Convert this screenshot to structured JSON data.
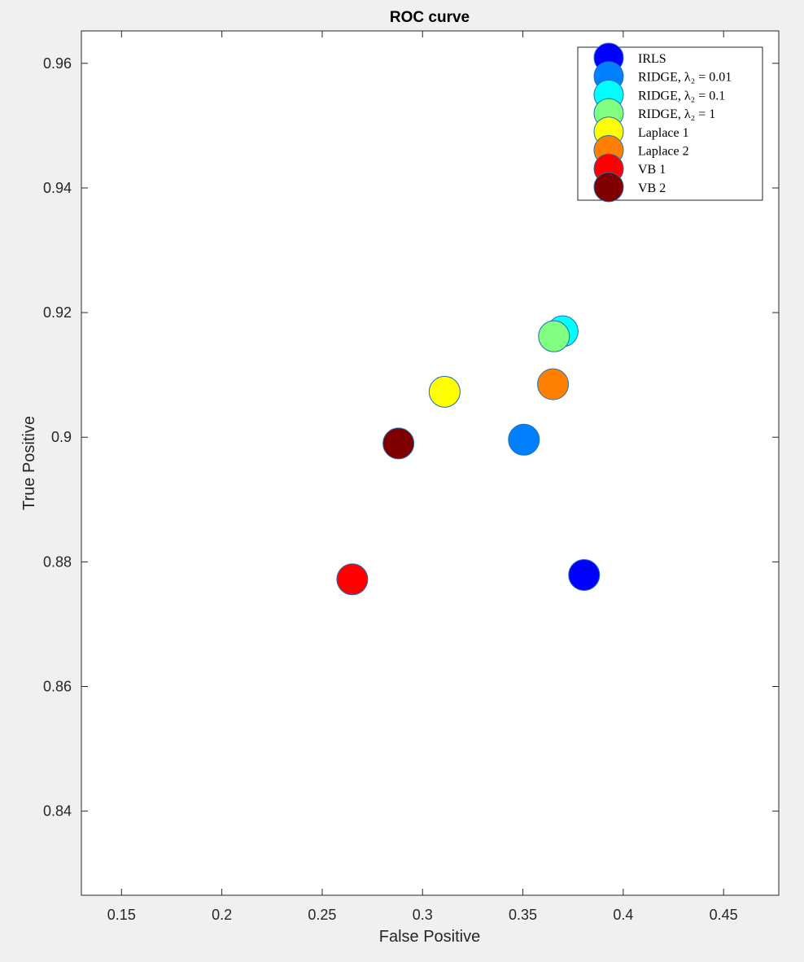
{
  "chart_data": {
    "type": "scatter",
    "title": "ROC curve",
    "xlabel": "False Positive",
    "ylabel": "True Positive",
    "xlim": [
      0.13,
      0.4775
    ],
    "ylim": [
      0.8265,
      0.9652
    ],
    "xticks": [
      0.15,
      0.2,
      0.25,
      0.3,
      0.35,
      0.4,
      0.45
    ],
    "xtick_labels": [
      "0.15",
      "0.2",
      "0.25",
      "0.3",
      "0.35",
      "0.4",
      "0.45"
    ],
    "yticks": [
      0.84,
      0.86,
      0.88,
      0.9,
      0.92,
      0.94,
      0.96
    ],
    "ytick_labels": [
      "0.84",
      "0.86",
      "0.88",
      "0.9",
      "0.92",
      "0.94",
      "0.96"
    ],
    "grid": false,
    "legend_position": "top-right",
    "series": [
      {
        "name": "IRLS",
        "color": "#0000ff",
        "x": 0.3805,
        "y": 0.8779
      },
      {
        "name": "RIDGE, λ₂ = 0.01",
        "color": "#0080ff",
        "x": 0.3505,
        "y": 0.8996
      },
      {
        "name": "RIDGE, λ₂ = 0.1",
        "color": "#00ffff",
        "x": 0.3698,
        "y": 0.917
      },
      {
        "name": "RIDGE, λ₂ = 1",
        "color": "#80ff80",
        "x": 0.3655,
        "y": 0.9162
      },
      {
        "name": "Laplace 1",
        "color": "#ffff00",
        "x": 0.311,
        "y": 0.9073
      },
      {
        "name": "Laplace 2",
        "color": "#ff8000",
        "x": 0.365,
        "y": 0.9085
      },
      {
        "name": "VB 1",
        "color": "#ff0000",
        "x": 0.265,
        "y": 0.8772
      },
      {
        "name": "VB 2",
        "color": "#800000",
        "x": 0.288,
        "y": 0.899
      }
    ]
  }
}
